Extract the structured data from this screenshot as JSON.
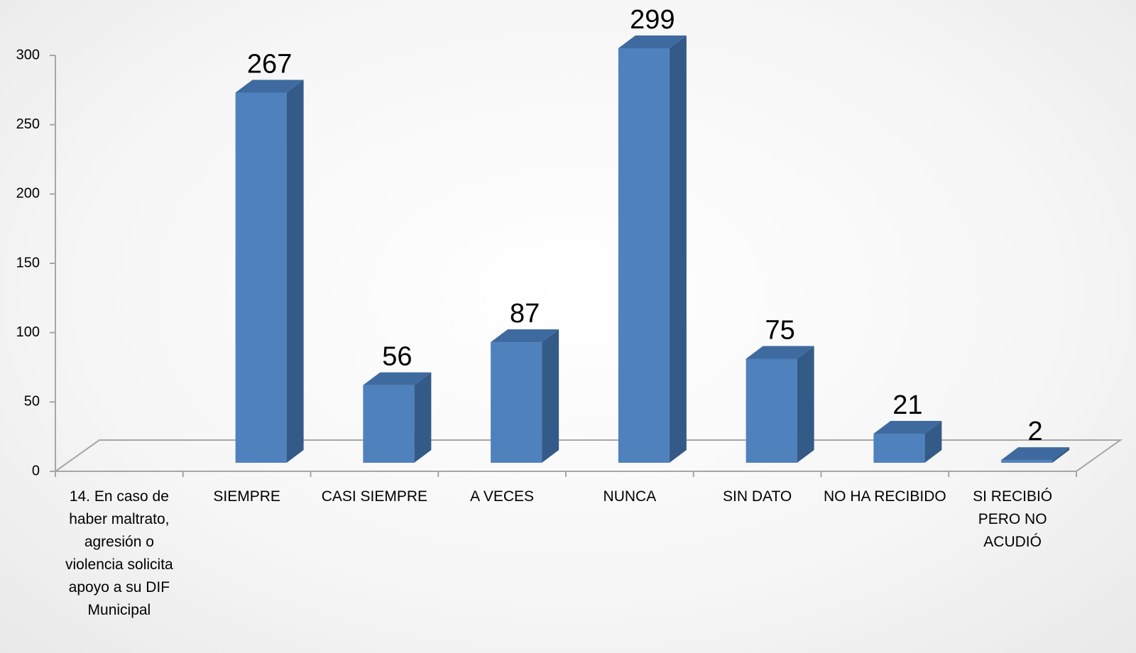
{
  "chart_data": {
    "type": "bar3d",
    "categories": [
      "14. En caso de haber maltrato, agresión o violencia solicita apoyo a su DIF Municipal",
      "SIEMPRE",
      "CASI SIEMPRE",
      "A VECES",
      "NUNCA",
      "SIN DATO",
      "NO HA RECIBIDO",
      "SI RECIBIÓ PERO NO ACUDIÓ"
    ],
    "values": [
      null,
      267,
      56,
      87,
      299,
      75,
      21,
      2
    ],
    "color": "#4f81bd",
    "ylim": [
      0,
      300
    ],
    "yticks": [
      0,
      50,
      100,
      150,
      200,
      250,
      300
    ]
  }
}
